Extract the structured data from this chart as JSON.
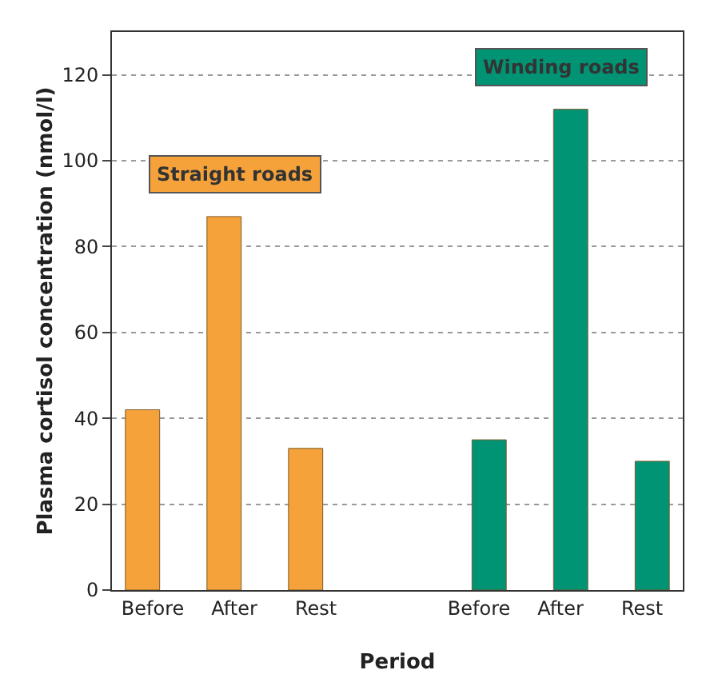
{
  "chart_data": {
    "type": "bar",
    "xlabel": "Period",
    "ylabel": "Plasma cortisol concentration (nmol/l)",
    "categories": [
      "Before",
      "After",
      "Rest",
      null,
      "Before",
      "After",
      "Rest"
    ],
    "series": [
      {
        "name": "Straight roads",
        "color": "#f5a23a",
        "values": [
          42,
          87,
          33,
          null,
          null,
          null,
          null
        ]
      },
      {
        "name": "Winding roads",
        "color": "#009475",
        "values": [
          null,
          null,
          null,
          null,
          35,
          112,
          30
        ]
      }
    ],
    "ylim": [
      0,
      130
    ],
    "yticks": [
      0,
      20,
      40,
      60,
      80,
      100,
      120
    ],
    "grid": "y",
    "legend": false
  }
}
